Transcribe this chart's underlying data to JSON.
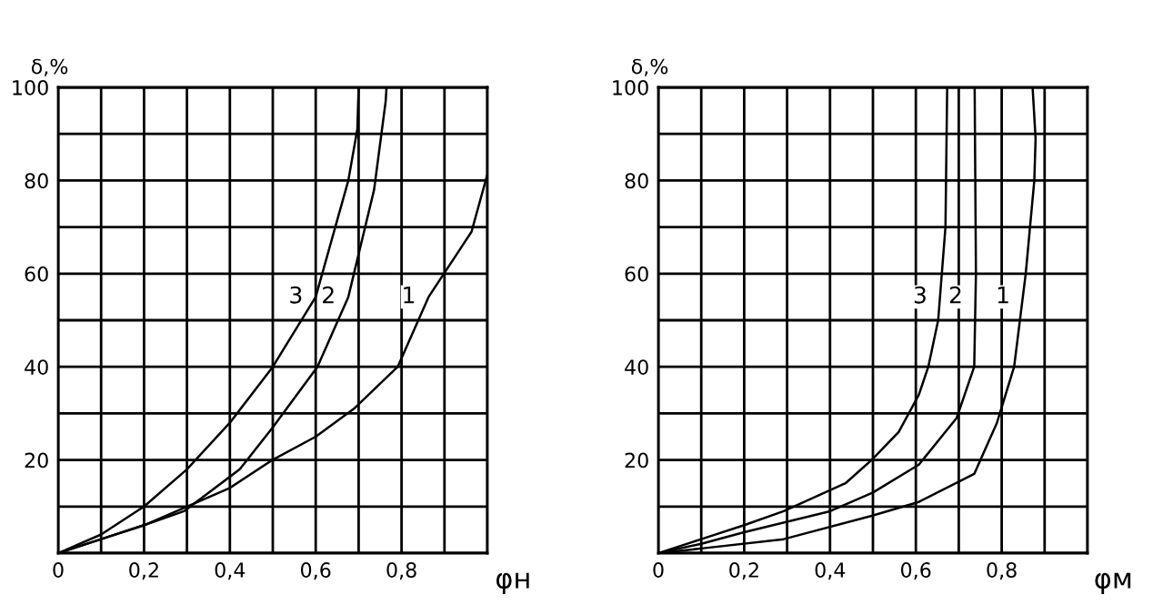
{
  "chart_data": [
    {
      "type": "line",
      "xlabel": "φн",
      "ylabel": "δ,%",
      "xlim": [
        0,
        1.0
      ],
      "ylim": [
        0,
        100
      ],
      "xticks": [
        {
          "value": 0,
          "label": "0"
        },
        {
          "value": 0.1,
          "label": null
        },
        {
          "value": 0.2,
          "label": "0,2"
        },
        {
          "value": 0.3,
          "label": null
        },
        {
          "value": 0.4,
          "label": "0,4"
        },
        {
          "value": 0.5,
          "label": null
        },
        {
          "value": 0.6,
          "label": "0,6"
        },
        {
          "value": 0.7,
          "label": null
        },
        {
          "value": 0.8,
          "label": "0,8"
        },
        {
          "value": 0.9,
          "label": null
        },
        {
          "value": 1.0,
          "label": null
        }
      ],
      "yticks": [
        {
          "value": 0,
          "label": null
        },
        {
          "value": 10,
          "label": null
        },
        20,
        {
          "value": 30,
          "label": null
        },
        40,
        {
          "value": 50,
          "label": null
        },
        60,
        {
          "value": 70,
          "label": null
        },
        80,
        {
          "value": 90,
          "label": null
        },
        100
      ],
      "grid": true,
      "marker": "none",
      "line_style": "solid",
      "series": [
        {
          "name": "3",
          "color": "#000000",
          "x": [
            0,
            0.1,
            0.2,
            0.3,
            0.4,
            0.5,
            0.6,
            0.676,
            0.697,
            0.7
          ],
          "values": [
            0,
            4,
            10,
            18,
            28,
            40,
            55,
            80,
            91,
            100
          ]
        },
        {
          "name": "2",
          "color": "#000000",
          "x": [
            0,
            0.1,
            0.2,
            0.293,
            0.423,
            0.5,
            0.604,
            0.676,
            0.736,
            0.763,
            0.765
          ],
          "values": [
            0,
            3,
            6,
            9,
            18,
            27,
            40,
            55,
            78,
            97,
            100
          ]
        },
        {
          "name": "1",
          "color": "#000000",
          "x": [
            0,
            0.1,
            0.2,
            0.3,
            0.4,
            0.499,
            0.6,
            0.689,
            0.791,
            0.863,
            0.963,
            0.999
          ],
          "values": [
            0,
            3,
            6,
            10,
            14,
            20,
            25,
            31,
            40,
            55,
            69,
            81
          ]
        }
      ]
    },
    {
      "type": "line",
      "xlabel": "φм",
      "ylabel": "δ,%",
      "xlim": [
        0,
        1.0
      ],
      "ylim": [
        0,
        100
      ],
      "xticks": [
        {
          "value": 0,
          "label": "0"
        },
        {
          "value": 0.1,
          "label": null
        },
        {
          "value": 0.2,
          "label": "0,2"
        },
        {
          "value": 0.3,
          "label": null
        },
        {
          "value": 0.4,
          "label": "0,4"
        },
        {
          "value": 0.5,
          "label": null
        },
        {
          "value": 0.6,
          "label": "0,6"
        },
        {
          "value": 0.7,
          "label": null
        },
        {
          "value": 0.8,
          "label": "0,8"
        },
        {
          "value": 0.9,
          "label": null
        },
        {
          "value": 1.0,
          "label": null
        }
      ],
      "yticks": [
        {
          "value": 0,
          "label": null
        },
        {
          "value": 10,
          "label": null
        },
        20,
        {
          "value": 30,
          "label": null
        },
        40,
        {
          "value": 50,
          "label": null
        },
        60,
        {
          "value": 70,
          "label": null
        },
        80,
        {
          "value": 90,
          "label": null
        },
        100
      ],
      "grid": true,
      "marker": "none",
      "line_style": "solid",
      "series": [
        {
          "name": "3",
          "color": "#000000",
          "x": [
            0,
            0.1,
            0.2,
            0.292,
            0.436,
            0.497,
            0.56,
            0.607,
            0.629,
            0.652,
            0.669,
            0.673
          ],
          "values": [
            0,
            3,
            6,
            9,
            15,
            20,
            26,
            34,
            40,
            50,
            70,
            100
          ]
        },
        {
          "name": "2",
          "color": "#000000",
          "x": [
            0,
            0.1,
            0.2,
            0.4,
            0.5,
            0.607,
            0.695,
            0.736,
            0.74,
            0.737
          ],
          "values": [
            0,
            2,
            4.5,
            9,
            13,
            19,
            29,
            40,
            60,
            100
          ]
        },
        {
          "name": "1",
          "color": "#000000",
          "x": [
            0,
            0.1,
            0.292,
            0.497,
            0.607,
            0.736,
            0.789,
            0.829,
            0.856,
            0.876,
            0.879,
            0.872
          ],
          "values": [
            0,
            1,
            3,
            8,
            11,
            17,
            28,
            40,
            60,
            80,
            89,
            100
          ]
        }
      ]
    }
  ]
}
